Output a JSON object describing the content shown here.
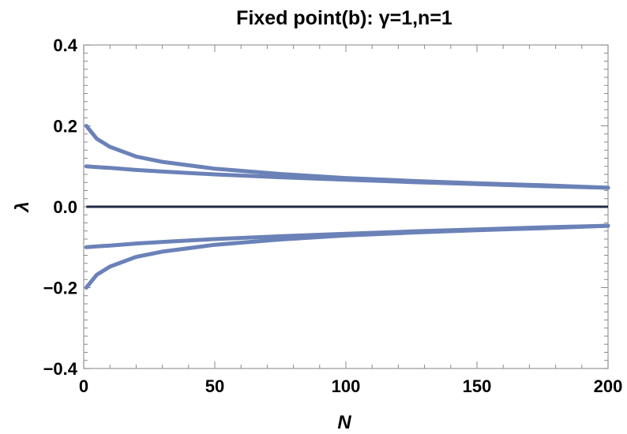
{
  "title": "Fixed point(b): γ=1,n=1",
  "chart_data": {
    "type": "line",
    "title": "Fixed point(b): γ=1,n=1",
    "xlabel": "N",
    "ylabel": "λ",
    "xlim": [
      0,
      200
    ],
    "ylim": [
      -0.4,
      0.4
    ],
    "x_ticks": [
      0,
      50,
      100,
      150,
      200
    ],
    "x_tick_labels": [
      "0",
      "50",
      "100",
      "150",
      "200"
    ],
    "y_ticks": [
      -0.4,
      -0.2,
      0.0,
      0.2,
      0.4
    ],
    "y_tick_labels": [
      "−0.4",
      "−0.2",
      "0.0",
      "0.2",
      "0.4"
    ],
    "grid": false,
    "series_color": "#6b82b8",
    "zero_line_color": "#1f2a44",
    "series": [
      {
        "x": [
          1,
          5,
          10,
          20,
          30,
          50,
          75,
          100,
          125,
          150,
          175,
          200
        ],
        "y": [
          0.2,
          0.168,
          0.148,
          0.124,
          0.111,
          0.094,
          0.081,
          0.071,
          0.064,
          0.058,
          0.053,
          0.047
        ]
      },
      {
        "x": [
          1,
          5,
          10,
          20,
          30,
          50,
          75,
          100,
          125,
          150,
          175,
          200
        ],
        "y": [
          0.1,
          0.098,
          0.096,
          0.091,
          0.087,
          0.08,
          0.073,
          0.067,
          0.061,
          0.056,
          0.051,
          0.047
        ]
      },
      {
        "x": [
          1,
          200
        ],
        "y": [
          0.0,
          0.0
        ]
      },
      {
        "x": [
          1,
          5,
          10,
          20,
          30,
          50,
          75,
          100,
          125,
          150,
          175,
          200
        ],
        "y": [
          -0.1,
          -0.098,
          -0.096,
          -0.091,
          -0.087,
          -0.08,
          -0.073,
          -0.067,
          -0.061,
          -0.056,
          -0.051,
          -0.047
        ]
      },
      {
        "x": [
          1,
          5,
          10,
          20,
          30,
          50,
          75,
          100,
          125,
          150,
          175,
          200
        ],
        "y": [
          -0.2,
          -0.168,
          -0.148,
          -0.124,
          -0.111,
          -0.094,
          -0.081,
          -0.071,
          -0.064,
          -0.058,
          -0.053,
          -0.047
        ]
      }
    ]
  }
}
